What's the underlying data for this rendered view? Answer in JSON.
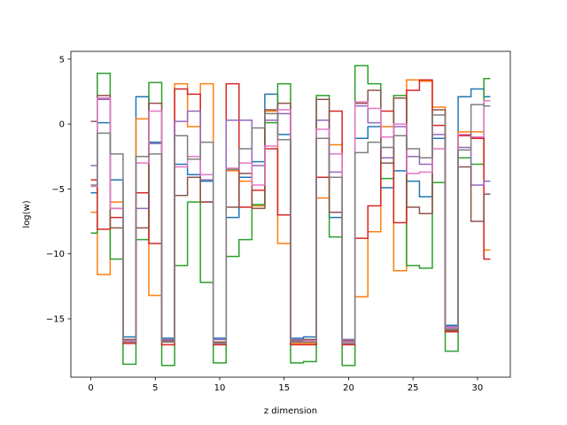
{
  "chart_data": {
    "type": "line",
    "drawstyle": "steps-mid",
    "xlabel": "z dimension",
    "ylabel": "log(w)",
    "xlim": [
      -1.55,
      32.55
    ],
    "ylim": [
      -19.5,
      5.6
    ],
    "xticks": [
      0,
      5,
      10,
      15,
      20,
      25,
      30
    ],
    "yticks": [
      5,
      0,
      -5,
      -10,
      -15
    ],
    "ytick_labels": [
      "5",
      "0",
      "−5",
      "−10",
      "−15"
    ],
    "grid": false,
    "x": [
      0,
      1,
      2,
      3,
      4,
      5,
      6,
      7,
      8,
      9,
      10,
      11,
      12,
      13,
      14,
      15,
      16,
      17,
      18,
      19,
      20,
      21,
      22,
      23,
      24,
      25,
      26,
      27,
      28,
      29,
      30,
      31
    ],
    "series": [
      {
        "color": "#1f77b4",
        "values": [
          -5.3,
          0.1,
          -4.3,
          -16.4,
          2.1,
          -1.4,
          -16.5,
          -3.1,
          -3.9,
          -4.4,
          -16.5,
          -7.2,
          -4.1,
          -2.9,
          2.3,
          -0.8,
          -16.5,
          -16.4,
          -1.1,
          -7.2,
          -16.6,
          -1.1,
          -0.2,
          -4.9,
          -3.6,
          -4.4,
          -5.6,
          -1.1,
          -15.5,
          2.1,
          2.7,
          2.1
        ]
      },
      {
        "color": "#ff7f0e",
        "values": [
          -6.8,
          -11.6,
          -6.0,
          -16.7,
          0.4,
          -13.2,
          -16.7,
          3.1,
          -0.2,
          3.1,
          -16.8,
          -3.6,
          -4.4,
          -6.3,
          1.0,
          -9.2,
          -16.9,
          -16.9,
          -5.7,
          -1.6,
          -16.9,
          -13.3,
          -8.3,
          -0.2,
          -11.3,
          3.4,
          3.3,
          1.3,
          -15.8,
          -0.6,
          -0.6,
          -9.7
        ]
      },
      {
        "color": "#2ca02c",
        "values": [
          -8.4,
          3.9,
          -10.4,
          -18.5,
          -8.9,
          3.2,
          -18.6,
          -10.9,
          -6.0,
          -12.2,
          -18.4,
          -10.2,
          -8.9,
          -6.2,
          0.1,
          3.1,
          -18.4,
          -18.3,
          2.2,
          -8.7,
          -18.6,
          4.5,
          3.1,
          -4.2,
          2.2,
          -10.9,
          -11.1,
          -4.5,
          -17.5,
          -2.6,
          -3.1,
          3.5
        ]
      },
      {
        "color": "#d62728",
        "values": [
          -4.3,
          -8.1,
          -7.2,
          -16.9,
          -5.3,
          -9.2,
          -17.0,
          2.7,
          2.3,
          -6.0,
          -17.0,
          3.1,
          -6.4,
          -5.1,
          -1.9,
          -7.0,
          -17.0,
          -17.0,
          -4.1,
          1.0,
          -17.0,
          -8.8,
          -6.3,
          1.0,
          -7.6,
          2.6,
          3.4,
          -0.1,
          -16.0,
          -0.9,
          -1.1,
          -10.4
        ]
      },
      {
        "color": "#9467bd",
        "values": [
          -3.2,
          1.9,
          -6.5,
          -16.6,
          -6.5,
          -1.5,
          -16.6,
          0.2,
          1.0,
          -4.3,
          -16.6,
          0.3,
          0.3,
          -3.2,
          0.3,
          0.8,
          -16.6,
          -16.6,
          0.3,
          -3.7,
          -16.6,
          1.4,
          0.1,
          -2.6,
          -0.2,
          -2.5,
          -3.1,
          -0.8,
          -15.6,
          -1.8,
          -4.7,
          -4.4
        ]
      },
      {
        "color": "#8c564b",
        "values": [
          0.2,
          2.2,
          -8.0,
          -16.6,
          -8.0,
          1.6,
          -16.7,
          -5.5,
          -4.1,
          -6.0,
          -16.8,
          -6.4,
          -3.8,
          -6.5,
          1.1,
          1.6,
          -16.7,
          -16.6,
          1.9,
          -6.8,
          -16.7,
          1.6,
          2.6,
          -3.0,
          2.0,
          -6.4,
          -6.9,
          1.1,
          -15.9,
          -3.3,
          -7.5,
          -5.4
        ]
      },
      {
        "color": "#e377c2",
        "values": [
          -4.8,
          2.0,
          -6.5,
          -16.7,
          -3.0,
          1.0,
          -16.8,
          -3.3,
          -2.5,
          -3.9,
          -16.9,
          -3.4,
          -3.0,
          -4.7,
          -1.7,
          1.1,
          -16.8,
          -16.7,
          -0.4,
          -2.3,
          -16.8,
          1.7,
          1.2,
          -1.0,
          0.0,
          -3.8,
          -3.7,
          -1.9,
          -15.7,
          -0.8,
          -1.0,
          1.8
        ]
      },
      {
        "color": "#7f7f7f",
        "values": [
          -4.7,
          -0.7,
          -2.3,
          -16.8,
          -2.5,
          -2.3,
          -16.8,
          -0.9,
          -2.7,
          -1.4,
          -16.9,
          -3.5,
          -1.9,
          -0.3,
          0.8,
          -1.2,
          -16.8,
          -16.8,
          -1.1,
          -4.1,
          -16.9,
          -2.2,
          -1.4,
          -1.8,
          -0.9,
          -1.9,
          -2.6,
          0.7,
          -15.8,
          -2.0,
          1.5,
          1.4
        ]
      }
    ]
  }
}
